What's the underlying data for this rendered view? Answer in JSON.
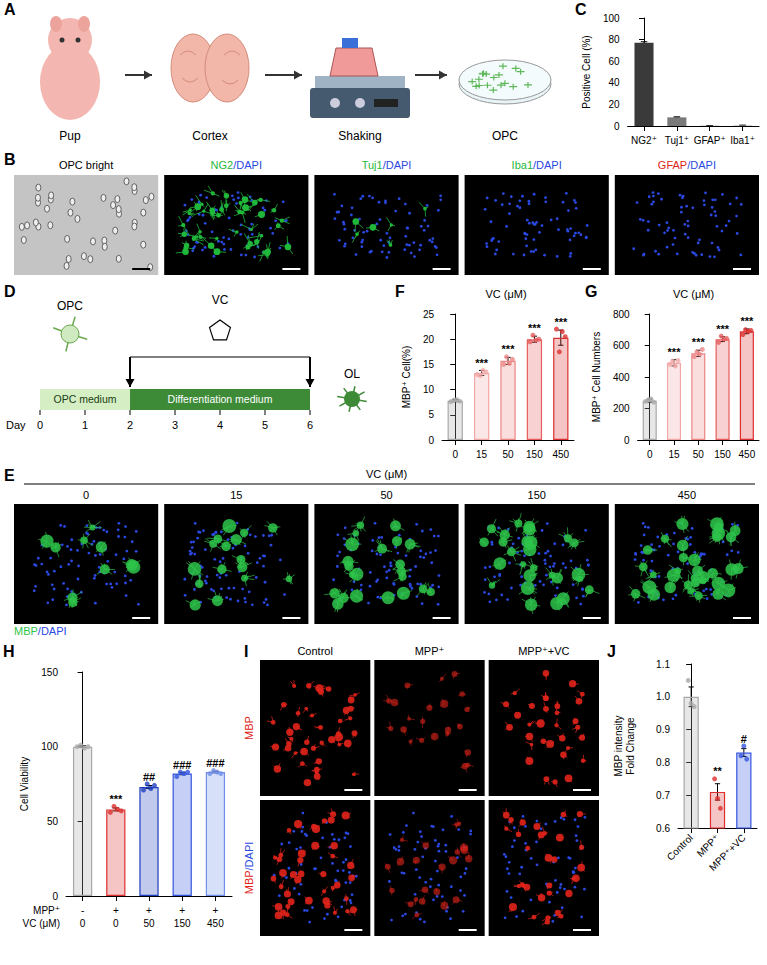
{
  "figure": {
    "A": {
      "letter": "A",
      "steps": [
        "Pup",
        "Cortex",
        "Shaking",
        "OPC"
      ]
    },
    "B": {
      "letter": "B",
      "images": [
        {
          "title": "OPC bright",
          "color": "#000000"
        },
        {
          "title": "NG2/DAPI",
          "color": "#1fb83a"
        },
        {
          "title": "Tuj1/DAPI",
          "color": "#1fb83a"
        },
        {
          "title": "Iba1/DAPI",
          "color": "#1fb83a"
        },
        {
          "title": "GFAP/DAPI",
          "color": "#e0241b"
        }
      ]
    },
    "D": {
      "letter": "D",
      "cells": [
        "OPC",
        "OL"
      ],
      "compound": "VC",
      "axis_label": "Day",
      "days": [
        0,
        1,
        2,
        3,
        4,
        5,
        6
      ],
      "media": [
        {
          "label": "OPC medium",
          "start": 0,
          "end": 2,
          "color": "#d6eec4"
        },
        {
          "label": "Differentiation medium",
          "start": 2,
          "end": 6,
          "color": "#3d8b37"
        }
      ],
      "treatment": {
        "start": 2,
        "end": 6
      }
    },
    "E": {
      "letter": "E",
      "title": "VC (μM)",
      "labels": [
        "0",
        "15",
        "50",
        "150",
        "450"
      ],
      "stain": "MBP/DAPI",
      "color": "#2ec44a"
    },
    "I": {
      "letter": "I",
      "columns": [
        "Control",
        "MPP⁺",
        "MPP⁺+VC"
      ],
      "rows": [
        "MBP",
        "MBP/DAPI"
      ],
      "color": "#e0241b"
    }
  },
  "chart_data": [
    {
      "panel": "C",
      "type": "bar",
      "ylabel": "Positive Cell (%)",
      "categories": [
        "NG2⁺",
        "Tuj1⁺",
        "GFAP⁺",
        "Iba1⁺"
      ],
      "values": [
        77,
        8,
        0.3,
        0.5
      ],
      "errors": [
        1,
        0.5,
        0.1,
        0.3
      ],
      "colors": [
        "#3a3a3a",
        "#7a7a7a",
        "#9a9a9a",
        "#b5b5b5"
      ],
      "ylim": [
        0,
        100
      ],
      "yticks": [
        0,
        20,
        40,
        60,
        80,
        100
      ],
      "grid": false
    },
    {
      "panel": "F",
      "type": "bar",
      "title": "VC (μM)",
      "ylabel": "MBP⁺ Cell(%)",
      "categories": [
        "0",
        "15",
        "50",
        "150",
        "450"
      ],
      "values": [
        7.8,
        13.3,
        15.7,
        20.0,
        20.3
      ],
      "errors": [
        0.2,
        0.5,
        0.7,
        0.6,
        1.5
      ],
      "points": [
        [
          7.6,
          7.9,
          8.0,
          7.7
        ],
        [
          13.0,
          12.8,
          13.8,
          13.5
        ],
        [
          15.0,
          16.5,
          15.2,
          16.0
        ],
        [
          19.5,
          20.8,
          19.8,
          20.0
        ],
        [
          22.0,
          17.5,
          21.5,
          20.5
        ]
      ],
      "significance": [
        null,
        "***",
        "***",
        "***",
        "***"
      ],
      "colors": [
        "#a8a8a8",
        "#f2a8a8",
        "#ec8585",
        "#e65c5c",
        "#dc2f2f"
      ],
      "ylim": [
        0,
        25
      ],
      "yticks": [
        0,
        5,
        10,
        15,
        20,
        25
      ],
      "grid": false
    },
    {
      "panel": "G",
      "type": "bar",
      "title": "VC (μM)",
      "ylabel": "MBP⁺ Cell Numbers",
      "categories": [
        "0",
        "15",
        "50",
        "150",
        "450"
      ],
      "values": [
        250,
        490,
        550,
        640,
        690
      ],
      "errors": [
        10,
        20,
        20,
        15,
        15
      ],
      "points": [
        [
          245,
          255,
          260,
          240
        ],
        [
          480,
          500,
          470,
          505
        ],
        [
          530,
          560,
          545,
          575
        ],
        [
          620,
          660,
          640,
          645
        ],
        [
          670,
          700,
          690,
          695
        ]
      ],
      "significance": [
        null,
        "***",
        "***",
        "***",
        "***"
      ],
      "colors": [
        "#a8a8a8",
        "#f2a8a8",
        "#ec8585",
        "#e65c5c",
        "#dc2f2f"
      ],
      "ylim": [
        0,
        800
      ],
      "yticks": [
        0,
        200,
        400,
        600,
        800
      ],
      "grid": false
    },
    {
      "panel": "H",
      "type": "bar",
      "ylabel": "Cell Viability",
      "category_title": "MPP⁺",
      "categories": [
        "-",
        "+",
        "+",
        "+",
        "+"
      ],
      "category_title_2": "VC (μM)",
      "categories_2": [
        "0",
        "0",
        "50",
        "150",
        "450"
      ],
      "values": [
        100,
        58,
        73,
        82,
        83
      ],
      "errors": [
        0.6,
        1,
        1,
        0.8,
        0.5
      ],
      "points": [
        [
          100,
          101,
          99,
          100
        ],
        [
          56,
          60,
          58,
          57
        ],
        [
          71,
          75,
          72,
          74
        ],
        [
          80,
          83,
          82,
          83
        ],
        [
          82,
          84,
          83,
          82
        ]
      ],
      "significance": [
        null,
        "***",
        "##",
        "###",
        "###"
      ],
      "colors": [
        "#a8a8a8",
        "#dc2f2f",
        "#1f3fbf",
        "#3355dd",
        "#6f8fe8"
      ],
      "ylim": [
        0,
        150
      ],
      "yticks": [
        0,
        50,
        100,
        150
      ],
      "grid": false
    },
    {
      "panel": "J",
      "type": "bar",
      "ylabel": "MBP intensity\nFold Change",
      "categories": [
        "Control",
        "MPP⁺",
        "MPP⁺+VC"
      ],
      "values": [
        1.0,
        0.71,
        0.83
      ],
      "errors": [
        0.03,
        0.025,
        0.012
      ],
      "points": [
        [
          1.05,
          0.98,
          0.97
        ],
        [
          0.75,
          0.69,
          0.66
        ],
        [
          0.82,
          0.85,
          0.81
        ]
      ],
      "significance": [
        null,
        "**",
        "#"
      ],
      "colors": [
        "#a8a8a8",
        "#dc2f2f",
        "#3355dd"
      ],
      "ylim": [
        0.6,
        1.1
      ],
      "yticks": [
        0.6,
        0.7,
        0.8,
        0.9,
        {
          "value": 1,
          "label": "1.0"
        },
        1.1
      ],
      "grid": false
    }
  ]
}
